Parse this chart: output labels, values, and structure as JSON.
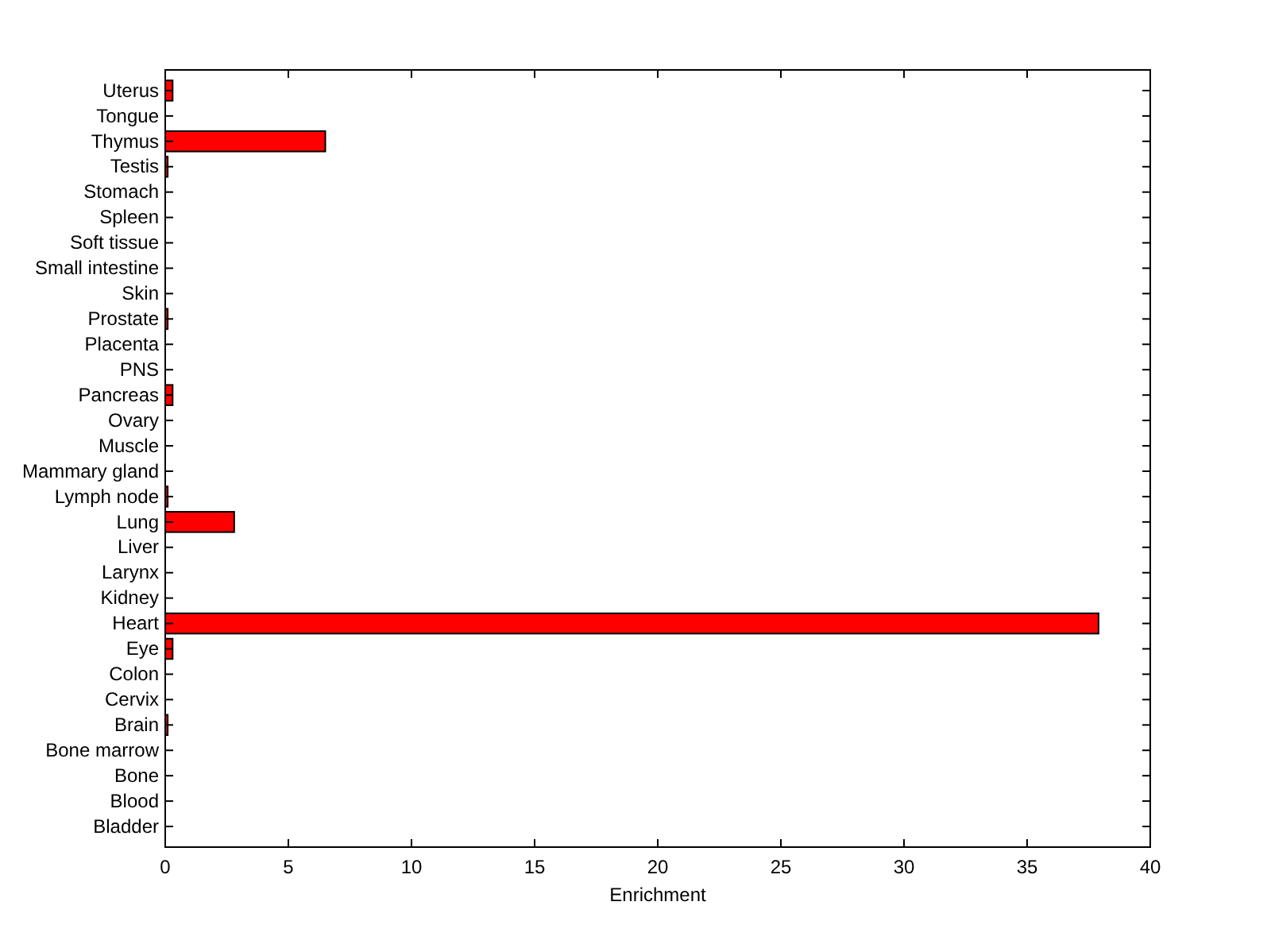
{
  "chart_data": {
    "type": "bar",
    "orientation": "horizontal",
    "xlabel": "Enrichment",
    "categories": [
      "Uterus",
      "Tongue",
      "Thymus",
      "Testis",
      "Stomach",
      "Spleen",
      "Soft tissue",
      "Small intestine",
      "Skin",
      "Prostate",
      "Placenta",
      "PNS",
      "Pancreas",
      "Ovary",
      "Muscle",
      "Mammary gland",
      "Lymph node",
      "Lung",
      "Liver",
      "Larynx",
      "Kidney",
      "Heart",
      "Eye",
      "Colon",
      "Cervix",
      "Brain",
      "Bone marrow",
      "Bone",
      "Blood",
      "Bladder"
    ],
    "values": [
      0.3,
      0,
      6.5,
      0.1,
      0,
      0,
      0,
      0,
      0,
      0.1,
      0,
      0,
      0.3,
      0,
      0,
      0,
      0.1,
      2.8,
      0,
      0,
      0,
      37.9,
      0.3,
      0,
      0,
      0.1,
      0,
      0,
      0,
      0
    ],
    "color": "#ff0000",
    "xlim": [
      0,
      40
    ],
    "xticks": [
      0,
      5,
      10,
      15,
      20,
      25,
      30,
      35,
      40
    ],
    "grid": false
  }
}
